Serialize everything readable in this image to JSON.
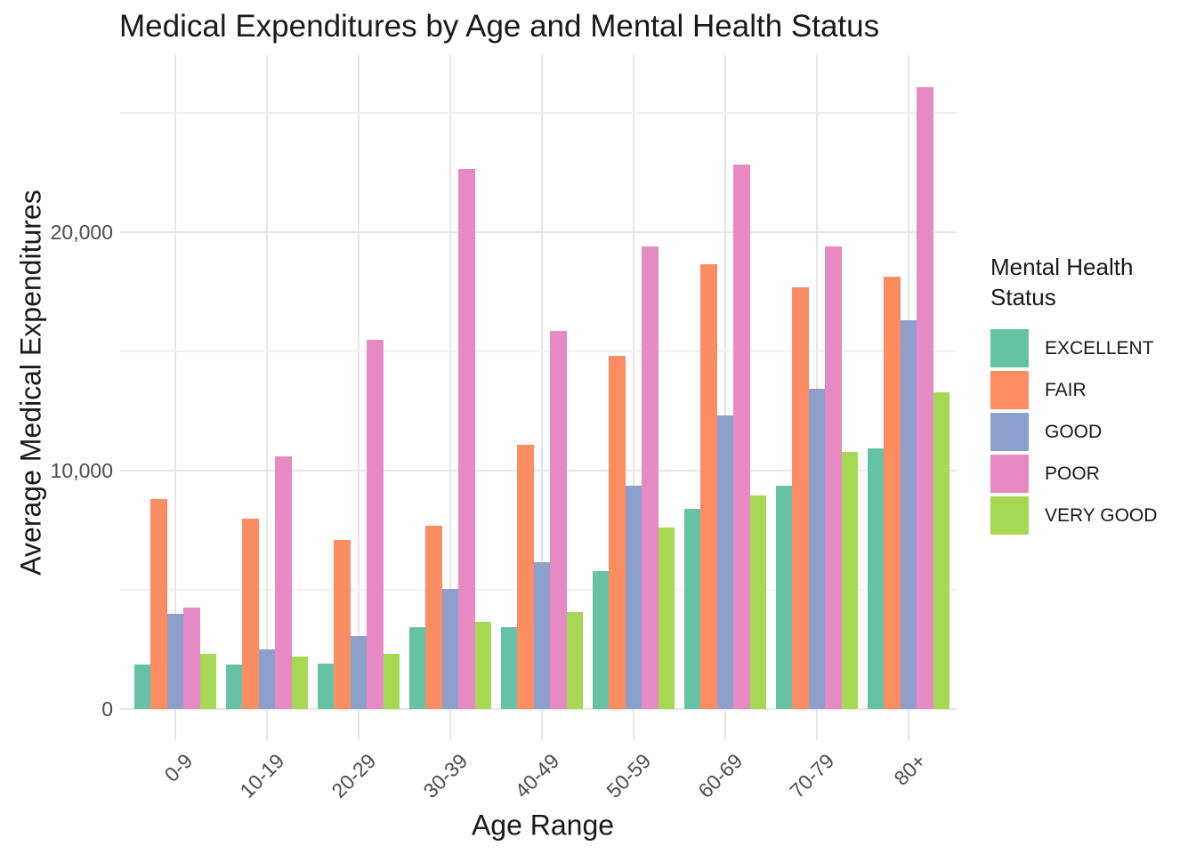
{
  "chart_data": {
    "type": "bar",
    "title": "Medical Expenditures by Age and Mental Health Status",
    "xlabel": "Age Range",
    "ylabel": "Average Medical Expenditures",
    "categories": [
      "0-9",
      "10-19",
      "20-29",
      "30-39",
      "40-49",
      "50-59",
      "60-69",
      "70-79",
      "80+"
    ],
    "series": [
      {
        "name": "EXCELLENT",
        "color": "#66C2A5",
        "values": [
          1850,
          1850,
          1900,
          3450,
          3450,
          5800,
          8400,
          9350,
          10950
        ]
      },
      {
        "name": "FAIR",
        "color": "#FC8D62",
        "values": [
          8800,
          8000,
          7100,
          7700,
          11100,
          14800,
          18650,
          17700,
          18150
        ]
      },
      {
        "name": "GOOD",
        "color": "#8DA0CB",
        "values": [
          4000,
          2500,
          3050,
          5050,
          6150,
          9350,
          12300,
          13450,
          16300
        ]
      },
      {
        "name": "POOR",
        "color": "#E78AC3",
        "values": [
          4250,
          10600,
          15500,
          22650,
          15850,
          19400,
          22850,
          19400,
          26100
        ]
      },
      {
        "name": "VERY GOOD",
        "color": "#A6D854",
        "values": [
          2300,
          2200,
          2300,
          3650,
          4050,
          7600,
          8950,
          10800,
          13300
        ]
      }
    ],
    "ylim": [
      0,
      27400
    ],
    "yticks": [
      {
        "value": 0,
        "label": "0"
      },
      {
        "value": 10000,
        "label": "10,000"
      },
      {
        "value": 20000,
        "label": "20,000"
      }
    ],
    "minor_gridlines": [
      5000,
      15000,
      25000
    ],
    "grid": true,
    "legend_position": "right"
  },
  "legend": {
    "title": "Mental Health Status",
    "title_lines": [
      "Mental Health",
      "Status"
    ],
    "entries": [
      {
        "label": "EXCELLENT",
        "color": "#66C2A5"
      },
      {
        "label": "FAIR",
        "color": "#FC8D62"
      },
      {
        "label": "GOOD",
        "color": "#8DA0CB"
      },
      {
        "label": "POOR",
        "color": "#E78AC3"
      },
      {
        "label": "VERY GOOD",
        "color": "#A6D854"
      }
    ]
  },
  "colors": {
    "background": "#FFFFFF",
    "grid_major": "#E7E7E7",
    "grid_minor": "#F2F2F2",
    "tick_text": "#4D4D4D",
    "title_text": "#1A1A1A"
  }
}
